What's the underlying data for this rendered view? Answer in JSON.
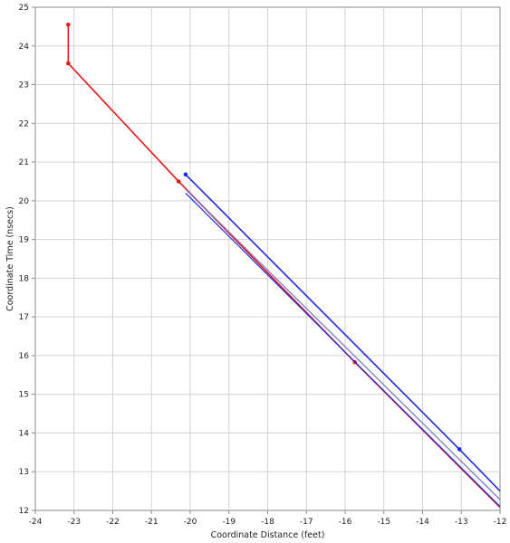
{
  "chart_data": {
    "type": "line",
    "title": "",
    "xlabel": "Coordinate Distance (feet)",
    "ylabel": "Coordinate Time (nsecs)",
    "xlim": [
      -24,
      -12
    ],
    "ylim": [
      12,
      25
    ],
    "x_ticks": [
      -24,
      -23,
      -22,
      -21,
      -20,
      -19,
      -18,
      -17,
      -16,
      -15,
      -14,
      -13,
      -12
    ],
    "y_ticks": [
      12,
      13,
      14,
      15,
      16,
      17,
      18,
      19,
      20,
      21,
      22,
      23,
      24,
      25
    ],
    "grid": true,
    "legend": "none",
    "series": [
      {
        "color": "#e81818",
        "points": [
          [
            -23.15,
            24.55
          ],
          [
            -23.15,
            23.55
          ],
          [
            -20.3,
            20.5
          ],
          [
            -15.75,
            15.83
          ],
          [
            -12,
            12.08
          ]
        ],
        "markers": [
          [
            -23.15,
            24.55
          ],
          [
            -23.15,
            23.55
          ],
          [
            -20.3,
            20.5
          ],
          [
            -15.75,
            15.83
          ]
        ]
      },
      {
        "color": "#1e28e6",
        "points": [
          [
            -20.12,
            20.68
          ],
          [
            -13.05,
            13.58
          ],
          [
            -12,
            12.5
          ]
        ],
        "markers": [
          [
            -20.12,
            20.68
          ],
          [
            -13.05,
            13.58
          ]
        ]
      },
      {
        "color": "#1e28e6",
        "points": [
          [
            -20.12,
            20.2
          ],
          [
            -12,
            12.1
          ]
        ],
        "markers": []
      },
      {
        "color": "#7070c8",
        "points": [
          [
            -20.12,
            20.3
          ],
          [
            -12,
            12.28
          ]
        ],
        "markers": []
      }
    ]
  }
}
